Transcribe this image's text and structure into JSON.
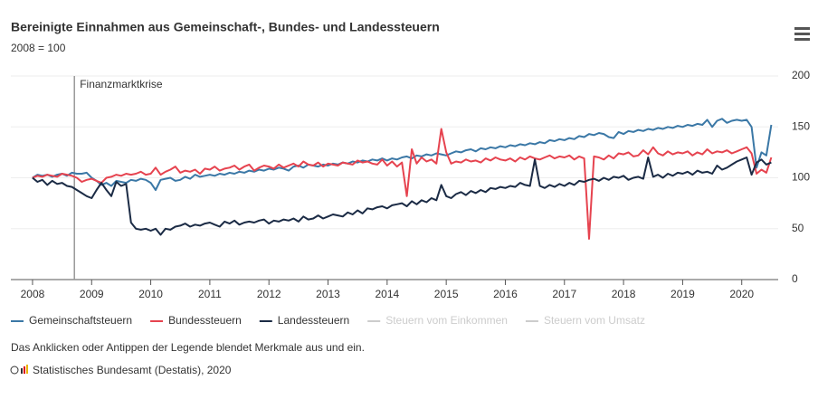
{
  "chart_data": {
    "type": "line",
    "title": "Bereinigte Einnahmen aus Gemeinschaft-, Bundes- und Landessteuern",
    "subtitle": "2008 = 100",
    "annotation": {
      "text": "Finanzmarktkrise",
      "x": 8.5
    },
    "note": "Das Anklicken oder Antippen der Legende blendet Merkmale aus und ein.",
    "source": "Statistisches Bundesamt (Destatis), 2020",
    "x": [
      0,
      1,
      2,
      3,
      4,
      5,
      6,
      7,
      8,
      9,
      10,
      11,
      12,
      13,
      14,
      15,
      16,
      17,
      18,
      19,
      20,
      21,
      22,
      23,
      24,
      25,
      26,
      27,
      28,
      29,
      30,
      31,
      32,
      33,
      34,
      35,
      36,
      37,
      38,
      39,
      40,
      41,
      42,
      43,
      44,
      45,
      46,
      47,
      48,
      49,
      50,
      51,
      52,
      53,
      54,
      55,
      56,
      57,
      58,
      59,
      60,
      61,
      62,
      63,
      64,
      65,
      66,
      67,
      68,
      69,
      70,
      71,
      72,
      73,
      74,
      75,
      76,
      77,
      78,
      79,
      80,
      81,
      82,
      83,
      84,
      85,
      86,
      87,
      88,
      89,
      90,
      91,
      92,
      93,
      94,
      95,
      96,
      97,
      98,
      99,
      100,
      101,
      102,
      103,
      104,
      105,
      106,
      107,
      108,
      109,
      110,
      111,
      112,
      113,
      114,
      115,
      116,
      117,
      118,
      119,
      120,
      121,
      122,
      123,
      124,
      125,
      126,
      127,
      128,
      129,
      130,
      131,
      132,
      133,
      134,
      135,
      136,
      137,
      138,
      139,
      140,
      141,
      142,
      143,
      144,
      145,
      146,
      147,
      148,
      149,
      150
    ],
    "xlim": [
      -4.4,
      151.4
    ],
    "xticks": [
      {
        "value": 0,
        "label": "2008"
      },
      {
        "value": 12,
        "label": "2009"
      },
      {
        "value": 24,
        "label": "2010"
      },
      {
        "value": 36,
        "label": "2011"
      },
      {
        "value": 48,
        "label": "2012"
      },
      {
        "value": 60,
        "label": "2013"
      },
      {
        "value": 72,
        "label": "2014"
      },
      {
        "value": 84,
        "label": "2015"
      },
      {
        "value": 96,
        "label": "2016"
      },
      {
        "value": 108,
        "label": "2017"
      },
      {
        "value": 120,
        "label": "2018"
      },
      {
        "value": 132,
        "label": "2019"
      },
      {
        "value": 144,
        "label": "2020"
      }
    ],
    "ylim": [
      0,
      200
    ],
    "yticks": [
      0,
      50,
      100,
      150,
      200
    ],
    "grid": true,
    "series": [
      {
        "name": "Gemeinschaftsteuern",
        "color": "#3b78a6",
        "values": [
          100,
          103,
          102,
          103,
          101,
          103,
          104,
          102,
          105,
          104,
          104,
          105,
          100,
          97,
          93,
          95,
          92,
          97,
          96,
          95,
          98,
          97,
          99,
          98,
          95,
          88,
          98,
          99,
          100,
          97,
          98,
          101,
          99,
          103,
          101,
          102,
          103,
          102,
          104,
          103,
          105,
          104,
          106,
          105,
          107,
          106,
          108,
          107,
          109,
          108,
          110,
          109,
          107,
          111,
          112,
          110,
          113,
          112,
          111,
          113,
          112,
          114,
          113,
          115,
          114,
          116,
          115,
          117,
          116,
          118,
          117,
          119,
          117,
          119,
          118,
          120,
          121,
          119,
          122,
          121,
          123,
          122,
          124,
          123,
          122,
          124,
          126,
          125,
          127,
          128,
          126,
          129,
          128,
          130,
          129,
          131,
          130,
          132,
          131,
          133,
          132,
          134,
          133,
          135,
          134,
          137,
          136,
          138,
          137,
          139,
          138,
          141,
          140,
          143,
          142,
          144,
          143,
          140,
          139,
          145,
          143,
          146,
          145,
          147,
          146,
          148,
          147,
          149,
          148,
          150,
          149,
          151,
          150,
          152,
          151,
          153,
          152,
          157,
          150,
          156,
          158,
          154,
          156,
          157,
          156,
          157,
          150,
          110,
          125,
          122,
          152
        ]
      },
      {
        "name": "Bundessteuern",
        "color": "#e6434f",
        "values": [
          100,
          102,
          101,
          103,
          102,
          101,
          104,
          103,
          102,
          100,
          96,
          98,
          99,
          97,
          95,
          100,
          101,
          103,
          102,
          104,
          103,
          104,
          106,
          103,
          104,
          110,
          103,
          106,
          108,
          111,
          105,
          107,
          106,
          108,
          104,
          109,
          108,
          111,
          107,
          109,
          110,
          112,
          108,
          111,
          113,
          107,
          110,
          112,
          111,
          109,
          113,
          110,
          112,
          114,
          111,
          116,
          113,
          112,
          115,
          111,
          114,
          113,
          112,
          115,
          114,
          113,
          117,
          115,
          116,
          114,
          113,
          118,
          112,
          116,
          111,
          115,
          82,
          128,
          114,
          120,
          116,
          118,
          114,
          148,
          125,
          114,
          116,
          115,
          118,
          116,
          117,
          115,
          119,
          117,
          120,
          118,
          117,
          119,
          116,
          120,
          118,
          121,
          119,
          118,
          120,
          122,
          119,
          121,
          120,
          122,
          118,
          121,
          119,
          40,
          121,
          120,
          118,
          122,
          119,
          124,
          123,
          125,
          121,
          122,
          127,
          123,
          130,
          124,
          122,
          126,
          123,
          125,
          124,
          126,
          122,
          125,
          123,
          128,
          124,
          126,
          125,
          127,
          124,
          126,
          128,
          130,
          124,
          104,
          108,
          105,
          120
        ]
      },
      {
        "name": "Landessteuern",
        "color": "#1b2b45",
        "values": [
          100,
          96,
          98,
          93,
          97,
          94,
          95,
          92,
          91,
          88,
          85,
          82,
          80,
          88,
          95,
          88,
          82,
          96,
          92,
          94,
          56,
          50,
          49,
          50,
          48,
          50,
          44,
          50,
          49,
          52,
          53,
          55,
          52,
          54,
          53,
          55,
          56,
          54,
          52,
          57,
          55,
          58,
          54,
          56,
          57,
          56,
          58,
          59,
          55,
          58,
          57,
          59,
          58,
          60,
          57,
          62,
          59,
          60,
          63,
          60,
          62,
          64,
          63,
          62,
          66,
          64,
          68,
          65,
          70,
          69,
          71,
          72,
          70,
          73,
          74,
          75,
          72,
          77,
          74,
          78,
          76,
          80,
          78,
          93,
          82,
          80,
          84,
          86,
          83,
          87,
          85,
          88,
          86,
          90,
          89,
          91,
          90,
          92,
          91,
          95,
          93,
          92,
          118,
          92,
          90,
          93,
          91,
          94,
          92,
          95,
          93,
          97,
          96,
          98,
          99,
          97,
          100,
          98,
          101,
          100,
          102,
          98,
          100,
          101,
          99,
          120,
          101,
          103,
          100,
          104,
          102,
          105,
          104,
          106,
          103,
          107,
          105,
          106,
          104,
          112,
          108,
          110,
          113,
          116,
          118,
          120,
          103,
          115,
          118,
          113,
          115
        ]
      }
    ],
    "hidden_series": [
      {
        "name": "Steuern vom Einkommen",
        "color": "#cccccc"
      },
      {
        "name": "Steuern vom Umsatz",
        "color": "#cccccc"
      }
    ]
  }
}
